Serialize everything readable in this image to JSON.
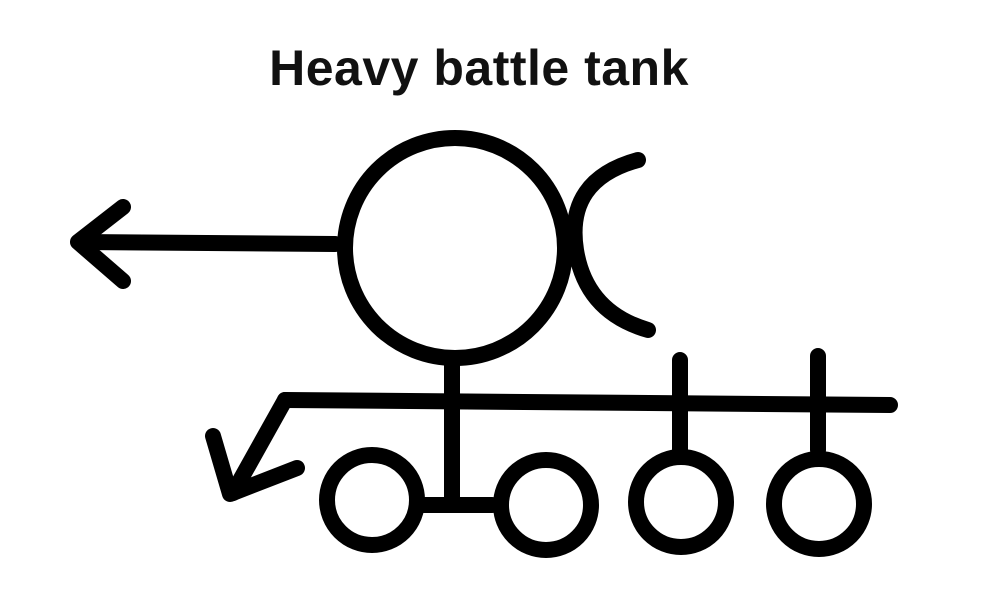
{
  "title": "Heavy battle tank",
  "colors": {
    "ink": "#000000",
    "background": "#ffffff"
  }
}
